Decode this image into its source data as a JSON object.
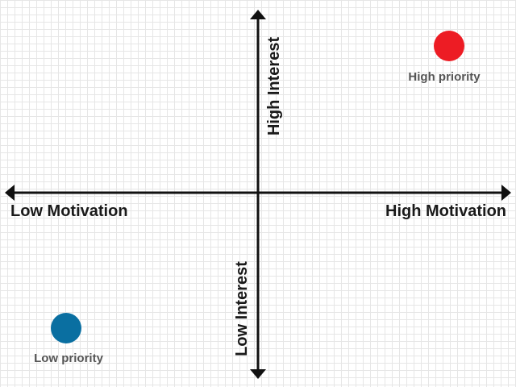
{
  "axes": {
    "x_left_label": "Low Motivation",
    "x_right_label": "High Motivation",
    "y_top_label": "High Interest",
    "y_bottom_label": "Low Interest"
  },
  "points": [
    {
      "label": "High priority",
      "color": "#ed1c24"
    },
    {
      "label": "Low priority",
      "color": "#0a6fa1"
    }
  ],
  "colors": {
    "axis": "#111111",
    "grid": "#e6e6e6",
    "background": "#ffffff"
  }
}
